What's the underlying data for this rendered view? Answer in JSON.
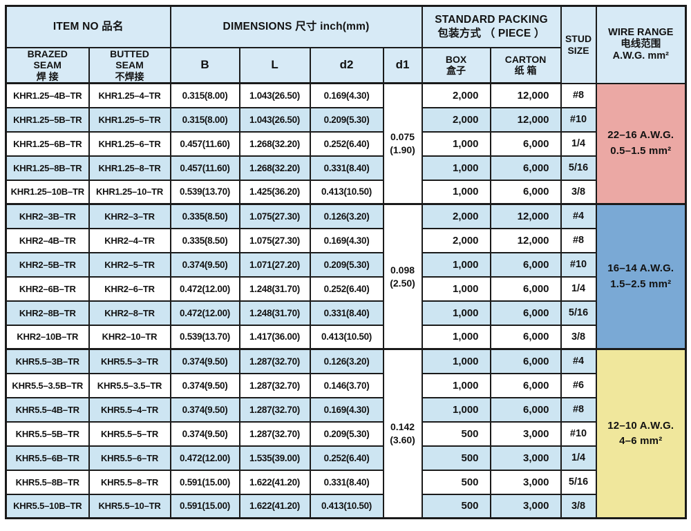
{
  "colors": {
    "header_bg": "#d7eaf6",
    "row_alt_bg": "#cde5f2",
    "border": "#1a1a1a",
    "wire_pink": "#eba8a4",
    "wire_blue": "#7aa9d5",
    "wire_yellow": "#f0e79c"
  },
  "header": {
    "item_no": "ITEM NO 品名",
    "dimensions": "DIMENSIONS 尺寸  inch(mm)",
    "packing_line1": "STANDARD PACKING",
    "packing_line2": "包装方式 （ PIECE ）",
    "stud_line1": "STUD",
    "stud_line2": "SIZE",
    "wire_line1": "WIRE RANGE",
    "wire_line2": "电线范围",
    "wire_line3": "A.W.G.  mm²",
    "brazed_line1": "BRAZED",
    "brazed_line2": "SEAM",
    "brazed_line3": "焊 接",
    "butted_line1": "BUTTED",
    "butted_line2": "SEAM",
    "butted_line3": "不焊接",
    "col_b": "B",
    "col_l": "L",
    "col_d2": "d2",
    "col_d1": "d1",
    "box_line1": "BOX",
    "box_line2": "盒子",
    "carton_line1": "CARTON",
    "carton_line2": "纸 箱"
  },
  "groups": [
    {
      "d1_lines": [
        "0.075",
        "(1.90)"
      ],
      "wire_lines": [
        "22–16 A.W.G.",
        "0.5–1.5  mm²"
      ],
      "wire_color": "wire_pink",
      "rows": [
        {
          "brazed": "KHR1.25–4B–TR",
          "butted": "KHR1.25–4–TR",
          "b": "0.315(8.00)",
          "l": "1.043(26.50)",
          "d2": "0.169(4.30)",
          "box": "2,000",
          "carton": "12,000",
          "stud": "#8"
        },
        {
          "brazed": "KHR1.25–5B–TR",
          "butted": "KHR1.25–5–TR",
          "b": "0.315(8.00)",
          "l": "1.043(26.50)",
          "d2": "0.209(5.30)",
          "box": "2,000",
          "carton": "12,000",
          "stud": "#10"
        },
        {
          "brazed": "KHR1.25–6B–TR",
          "butted": "KHR1.25–6–TR",
          "b": "0.457(11.60)",
          "l": "1.268(32.20)",
          "d2": "0.252(6.40)",
          "box": "1,000",
          "carton": "6,000",
          "stud": "1/4"
        },
        {
          "brazed": "KHR1.25–8B–TR",
          "butted": "KHR1.25–8–TR",
          "b": "0.457(11.60)",
          "l": "1.268(32.20)",
          "d2": "0.331(8.40)",
          "box": "1,000",
          "carton": "6,000",
          "stud": "5/16"
        },
        {
          "brazed": "KHR1.25–10B–TR",
          "butted": "KHR1.25–10–TR",
          "b": "0.539(13.70)",
          "l": "1.425(36.20)",
          "d2": "0.413(10.50)",
          "box": "1,000",
          "carton": "6,000",
          "stud": "3/8"
        }
      ]
    },
    {
      "d1_lines": [
        "0.098",
        "(2.50)"
      ],
      "wire_lines": [
        "16–14 A.W.G.",
        "1.5–2.5  mm²"
      ],
      "wire_color": "wire_blue",
      "rows": [
        {
          "brazed": "KHR2–3B–TR",
          "butted": "KHR2–3–TR",
          "b": "0.335(8.50)",
          "l": "1.075(27.30)",
          "d2": "0.126(3.20)",
          "box": "2,000",
          "carton": "12,000",
          "stud": "#4"
        },
        {
          "brazed": "KHR2–4B–TR",
          "butted": "KHR2–4–TR",
          "b": "0.335(8.50)",
          "l": "1.075(27.30)",
          "d2": "0.169(4.30)",
          "box": "2,000",
          "carton": "12,000",
          "stud": "#8"
        },
        {
          "brazed": "KHR2–5B–TR",
          "butted": "KHR2–5–TR",
          "b": "0.374(9.50)",
          "l": "1.071(27.20)",
          "d2": "0.209(5.30)",
          "box": "1,000",
          "carton": "6,000",
          "stud": "#10"
        },
        {
          "brazed": "KHR2–6B–TR",
          "butted": "KHR2–6–TR",
          "b": "0.472(12.00)",
          "l": "1.248(31.70)",
          "d2": "0.252(6.40)",
          "box": "1,000",
          "carton": "6,000",
          "stud": "1/4"
        },
        {
          "brazed": "KHR2–8B–TR",
          "butted": "KHR2–8–TR",
          "b": "0.472(12.00)",
          "l": "1.248(31.70)",
          "d2": "0.331(8.40)",
          "box": "1,000",
          "carton": "6,000",
          "stud": "5/16"
        },
        {
          "brazed": "KHR2–10B–TR",
          "butted": "KHR2–10–TR",
          "b": "0.539(13.70)",
          "l": "1.417(36.00)",
          "d2": "0.413(10.50)",
          "box": "1,000",
          "carton": "6,000",
          "stud": "3/8"
        }
      ]
    },
    {
      "d1_lines": [
        "0.142",
        "(3.60)"
      ],
      "wire_lines": [
        "12–10 A.W.G.",
        "4–6  mm²"
      ],
      "wire_color": "wire_yellow",
      "rows": [
        {
          "brazed": "KHR5.5–3B–TR",
          "butted": "KHR5.5–3–TR",
          "b": "0.374(9.50)",
          "l": "1.287(32.70)",
          "d2": "0.126(3.20)",
          "box": "1,000",
          "carton": "6,000",
          "stud": "#4"
        },
        {
          "brazed": "KHR5.5–3.5B–TR",
          "butted": "KHR5.5–3.5–TR",
          "b": "0.374(9.50)",
          "l": "1.287(32.70)",
          "d2": "0.146(3.70)",
          "box": "1,000",
          "carton": "6,000",
          "stud": "#6"
        },
        {
          "brazed": "KHR5.5–4B–TR",
          "butted": "KHR5.5–4–TR",
          "b": "0.374(9.50)",
          "l": "1.287(32.70)",
          "d2": "0.169(4.30)",
          "box": "1,000",
          "carton": "6,000",
          "stud": "#8"
        },
        {
          "brazed": "KHR5.5–5B–TR",
          "butted": "KHR5.5–5–TR",
          "b": "0.374(9.50)",
          "l": "1.287(32.70)",
          "d2": "0.209(5.30)",
          "box": "500",
          "carton": "3,000",
          "stud": "#10"
        },
        {
          "brazed": "KHR5.5–6B–TR",
          "butted": "KHR5.5–6–TR",
          "b": "0.472(12.00)",
          "l": "1.535(39.00)",
          "d2": "0.252(6.40)",
          "box": "500",
          "carton": "3,000",
          "stud": "1/4"
        },
        {
          "brazed": "KHR5.5–8B–TR",
          "butted": "KHR5.5–8–TR",
          "b": "0.591(15.00)",
          "l": "1.622(41.20)",
          "d2": "0.331(8.40)",
          "box": "500",
          "carton": "3,000",
          "stud": "5/16"
        },
        {
          "brazed": "KHR5.5–10B–TR",
          "butted": "KHR5.5–10–TR",
          "b": "0.591(15.00)",
          "l": "1.622(41.20)",
          "d2": "0.413(10.50)",
          "box": "500",
          "carton": "3,000",
          "stud": "3/8"
        }
      ]
    }
  ]
}
